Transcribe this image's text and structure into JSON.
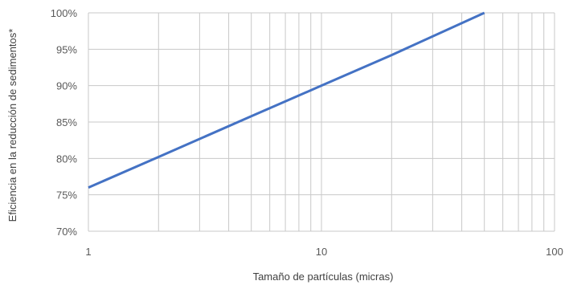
{
  "chart_data": {
    "type": "line",
    "title": "",
    "xlabel": "Tamaño de partículas (micras)",
    "ylabel": "Eficiencia en la reducción de sedimentos*",
    "x_scale": "log",
    "xlim": [
      1,
      100
    ],
    "ylim": [
      70,
      100
    ],
    "x_tick_labels": [
      "1",
      "10",
      "100"
    ],
    "y_tick_labels": [
      "70%",
      "75%",
      "80%",
      "85%",
      "90%",
      "95%",
      "100%"
    ],
    "grid": true,
    "legend": "none",
    "series": [
      {
        "x": [
          1,
          2,
          5,
          10,
          20,
          50
        ],
        "y": [
          76,
          80.2,
          85.8,
          90,
          94.2,
          100
        ]
      }
    ],
    "colors": {
      "line": "#4472C4",
      "grid": "#C8C8C8",
      "tick_text": "#595959"
    }
  }
}
